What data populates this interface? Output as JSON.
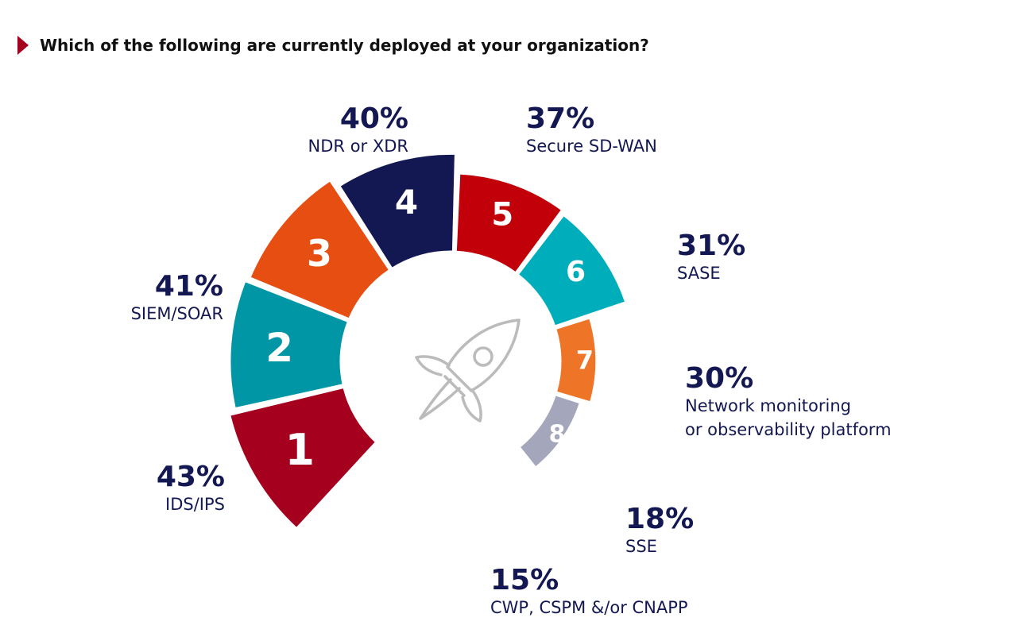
{
  "title": "Which of the following are currently deployed at your organization?",
  "chart_data": {
    "type": "radial-bar",
    "title": "Which of the following are currently deployed at your organization?",
    "unit": "%",
    "items": [
      {
        "rank": "1",
        "label": "IDS/IPS",
        "value": 43,
        "pct_label": "43%",
        "color": "#A6001F"
      },
      {
        "rank": "2",
        "label": "SIEM/SOAR",
        "value": 41,
        "pct_label": "41%",
        "color": "#0096A6"
      },
      {
        "rank": "3",
        "label": "NDR or XDR",
        "value": 40,
        "pct_label": "40%",
        "color": "#E64E12"
      },
      {
        "rank": "4",
        "label": "Secure SD-WAN",
        "value": 37,
        "pct_label": "37%",
        "color": "#141852"
      },
      {
        "rank": "5",
        "label": "SASE",
        "value": 31,
        "pct_label": "31%",
        "color": "#C1000A"
      },
      {
        "rank": "6",
        "label": [
          "Network monitoring",
          "or observability platform"
        ],
        "value": 30,
        "pct_label": "30%",
        "color": "#00AEBB"
      },
      {
        "rank": "7",
        "label": "SSE",
        "value": 18,
        "pct_label": "18%",
        "color": "#EE7527"
      },
      {
        "rank": "8",
        "label": "CWP, CSPM &/or CNAPP",
        "value": 15,
        "pct_label": "15%",
        "color": "#A4A6BC"
      }
    ]
  },
  "colors": {
    "title_marker": "#A6001F",
    "text": "#141852",
    "icon": "#BBBBBB"
  },
  "center_icon": "rocket-icon"
}
